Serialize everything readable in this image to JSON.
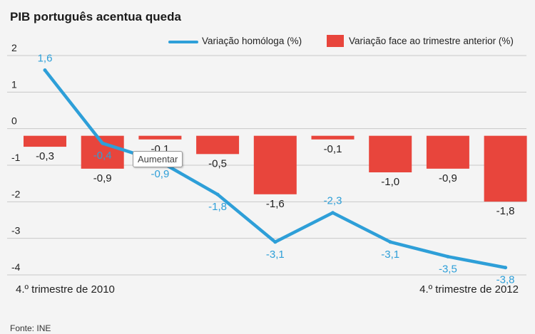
{
  "title": "PIB português acentua queda",
  "source": "Fonte: INE",
  "tooltip": "Aumentar",
  "legend": {
    "line_label": "Variação homóloga (%)",
    "bar_label": "Variação face ao trimestre anterior (%)"
  },
  "colors": {
    "line": "#2e9fd8",
    "bar": "#e8453c",
    "grid": "#c9c9c9",
    "text": "#222222"
  },
  "chart_data": {
    "type": "bar",
    "title": "PIB português acentua queda",
    "categories": [
      "4.º trimestre de 2010",
      "",
      "",
      "",
      "",
      "",
      "",
      "",
      "4.º trimestre de 2012"
    ],
    "x_tick_labels": [
      "4.º trimestre de 2010",
      "4.º trimestre de 2012"
    ],
    "y_ticks": [
      2,
      1,
      0,
      -1,
      -2,
      -3,
      -4
    ],
    "ylim": [
      -4,
      2
    ],
    "grid": true,
    "legend_position": "top-right",
    "series": [
      {
        "name": "Variação face ao trimestre anterior (%)",
        "type": "bar",
        "values": [
          -0.3,
          -0.9,
          -0.1,
          -0.5,
          -1.6,
          -0.1,
          -1.0,
          -0.9,
          -1.8
        ],
        "labels": [
          "-0,3",
          "-0,9",
          "-0,1",
          "-0,5",
          "-1,6",
          "-0,1",
          "-1,0",
          "-0,9",
          "-1,8"
        ]
      },
      {
        "name": "Variação homóloga (%)",
        "type": "line",
        "values": [
          1.6,
          -0.4,
          -0.9,
          -1.8,
          -3.1,
          -2.3,
          -3.1,
          -3.5,
          -3.8
        ],
        "labels": [
          "1,6",
          "-0,4",
          "-0,9",
          "-1,8",
          "-3,1",
          "-2,3",
          "-3,1",
          "-3,5",
          "-3,8"
        ]
      }
    ]
  }
}
